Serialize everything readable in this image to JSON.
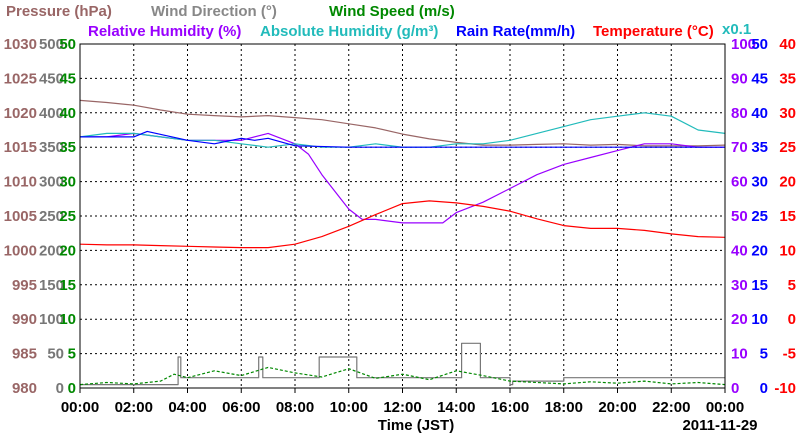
{
  "chart_data": {
    "type": "line",
    "titles": {
      "pressure": "Pressure (hPa)",
      "wind_direction": "Wind Direction (°)",
      "wind_speed": "Wind Speed (m/s)",
      "relative_humidity": "Relative Humidity (%)",
      "absolute_humidity": "Absolute Humidity (g/m³)",
      "rain_rate": "Rain Rate(mm/h)",
      "temperature": "Temperature (°C)",
      "ah_multiplier": "x0.1"
    },
    "xlabel": "Time (JST)",
    "date": "2011-11-29",
    "x_ticks": [
      "00:00",
      "02:00",
      "04:00",
      "06:00",
      "08:00",
      "10:00",
      "12:00",
      "14:00",
      "16:00",
      "18:00",
      "20:00",
      "22:00",
      "00:00"
    ],
    "x_range_hours": [
      0,
      24
    ],
    "grid": true,
    "axes": {
      "pressure": {
        "ticks": [
          "980",
          "985",
          "990",
          "995",
          "1000",
          "1005",
          "1010",
          "1015",
          "1020",
          "1025",
          "1030"
        ],
        "range": [
          980,
          1030
        ],
        "color": "#996666"
      },
      "wind_direction": {
        "ticks": [
          "0",
          "50",
          "100",
          "150",
          "200",
          "250",
          "300",
          "350",
          "400",
          "450",
          "500"
        ],
        "range": [
          0,
          500
        ],
        "color": "#777777"
      },
      "wind_speed": {
        "ticks": [
          "0",
          "5",
          "10",
          "15",
          "20",
          "25",
          "30",
          "35",
          "40",
          "45",
          "50"
        ],
        "range": [
          0,
          50
        ],
        "color": "#008800"
      },
      "relative_humidity": {
        "ticks": [
          "0",
          "10",
          "20",
          "30",
          "40",
          "50",
          "60",
          "70",
          "80",
          "90",
          "100"
        ],
        "range": [
          0,
          100
        ],
        "color": "#9900ff"
      },
      "rain_rate": {
        "ticks": [
          "0",
          "5",
          "10",
          "15",
          "20",
          "25",
          "30",
          "35",
          "40",
          "45",
          "50"
        ],
        "range": [
          0,
          50
        ],
        "color": "#0000ff"
      },
      "temperature": {
        "ticks": [
          "-10",
          "-5",
          "0",
          "5",
          "10",
          "15",
          "20",
          "25",
          "30",
          "35",
          "40"
        ],
        "range": [
          -10,
          40
        ],
        "color": "#ff0000"
      }
    },
    "series": [
      {
        "name": "Pressure (hPa)",
        "axis": "pressure",
        "color": "#996666",
        "x": [
          0,
          1,
          2,
          3,
          4,
          5,
          6,
          7,
          8,
          9,
          10,
          11,
          12,
          13,
          14,
          15,
          16,
          17,
          18,
          19,
          20,
          21,
          22,
          23,
          24
        ],
        "y": [
          1021.8,
          1021.5,
          1021.1,
          1020.4,
          1019.8,
          1019.6,
          1019.4,
          1019.6,
          1019.3,
          1019.0,
          1018.4,
          1017.8,
          1016.9,
          1016.2,
          1015.7,
          1015.3,
          1015.3,
          1015.4,
          1015.5,
          1015.3,
          1015.4,
          1015.2,
          1015.2,
          1015.2,
          1015.3
        ]
      },
      {
        "name": "Wind Direction (°)",
        "axis": "wind_direction",
        "color": "#777777",
        "x": [
          0,
          3.55,
          3.65,
          3.75,
          6.5,
          6.65,
          6.8,
          7.2,
          8.85,
          8.9,
          10.25,
          10.3,
          12.0,
          14.1,
          14.2,
          14.85,
          14.9,
          16.0,
          16.1,
          17.5,
          18.0,
          24
        ],
        "y": [
          5,
          5,
          45,
          15,
          15,
          45,
          15,
          15,
          15,
          45,
          45,
          15,
          15,
          15,
          65,
          65,
          15,
          5,
          10,
          10,
          15,
          15
        ]
      },
      {
        "name": "Wind Speed (m/s)",
        "axis": "wind_speed",
        "color": "#008800",
        "x": [
          0,
          1,
          2,
          3,
          3.5,
          4,
          5,
          6,
          7,
          8,
          9,
          10,
          11,
          12,
          13,
          14,
          15,
          16,
          17,
          18,
          19,
          20,
          21,
          22,
          23,
          24
        ],
        "y": [
          0.5,
          0.8,
          0.6,
          1.0,
          2.0,
          1.5,
          2.5,
          1.8,
          3.0,
          2.2,
          1.6,
          2.8,
          1.4,
          2.0,
          1.2,
          2.5,
          1.8,
          1.0,
          0.8,
          0.6,
          0.9,
          0.7,
          1.0,
          0.6,
          0.8,
          0.5
        ]
      },
      {
        "name": "Relative Humidity (%)",
        "axis": "relative_humidity",
        "color": "#9900ff",
        "x": [
          0,
          1,
          2,
          3,
          4,
          5,
          6,
          7,
          8,
          8.5,
          9,
          10,
          10.5,
          11,
          12,
          13,
          13.5,
          14,
          15,
          16,
          17,
          18,
          19,
          20,
          21,
          22,
          23,
          24
        ],
        "y": [
          73,
          73,
          74,
          73,
          72,
          72,
          72,
          74,
          71,
          68,
          62,
          52,
          49,
          49,
          48,
          48,
          48,
          51,
          54,
          58,
          62,
          65,
          67,
          69,
          71,
          71,
          70,
          70
        ]
      },
      {
        "name": "Absolute Humidity (g/m³)",
        "axis": "relative_humidity",
        "color": "#22bbbb",
        "x": [
          0,
          1,
          2,
          3,
          4,
          5,
          6,
          7,
          8,
          9,
          10,
          11,
          12,
          13,
          14,
          15,
          16,
          17,
          18,
          19,
          20,
          21,
          22,
          23,
          24
        ],
        "y": [
          73,
          74,
          74,
          73,
          72,
          72,
          71,
          70,
          71,
          70,
          70,
          71,
          70,
          70,
          71,
          71,
          72,
          74,
          76,
          78,
          79,
          80,
          79,
          75,
          74
        ]
      },
      {
        "name": "Rain Rate(mm/h)",
        "axis": "rain_rate",
        "color": "#0000ff",
        "x": [
          0,
          2,
          2.5,
          4,
          5,
          6,
          6.5,
          7,
          8,
          10,
          12,
          14,
          16,
          18,
          20,
          22,
          24
        ],
        "y": [
          36.5,
          36.5,
          37.3,
          36.0,
          35.5,
          36.3,
          36.0,
          36.3,
          35.2,
          35.0,
          35.0,
          35.0,
          35.0,
          35.0,
          35.0,
          35.0,
          35.0
        ]
      },
      {
        "name": "Temperature (°C)",
        "axis": "temperature",
        "color": "#ff0000",
        "x": [
          0,
          1,
          2,
          3,
          4,
          5,
          6,
          7,
          8,
          9,
          10,
          11,
          12,
          13,
          14,
          15,
          16,
          17,
          18,
          19,
          20,
          21,
          22,
          23,
          24
        ],
        "y": [
          10.9,
          10.8,
          10.8,
          10.7,
          10.6,
          10.5,
          10.4,
          10.4,
          10.9,
          12.0,
          13.5,
          15.2,
          16.8,
          17.2,
          16.9,
          16.4,
          15.7,
          14.6,
          13.6,
          13.2,
          13.2,
          12.9,
          12.4,
          12.0,
          11.9
        ]
      }
    ]
  }
}
